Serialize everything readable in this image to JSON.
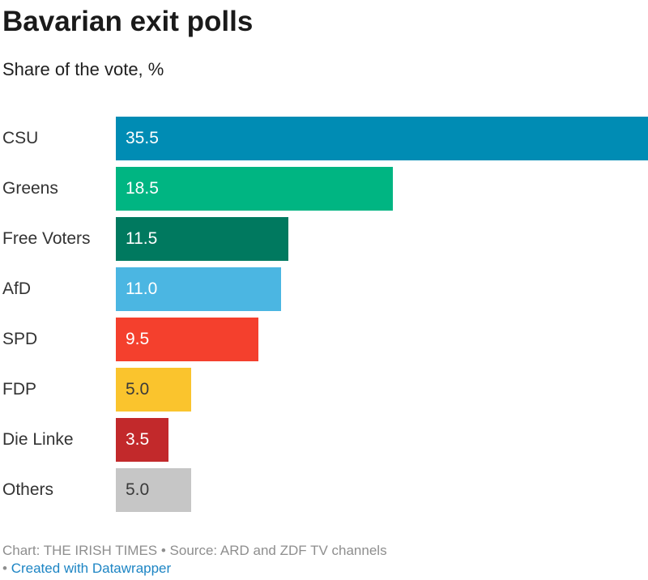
{
  "header": {
    "title": "Bavarian exit polls",
    "subtitle": "Share of the vote, %"
  },
  "chart_data": {
    "type": "bar",
    "orientation": "horizontal",
    "title": "Bavarian exit polls",
    "subtitle": "Share of the vote, %",
    "categories": [
      "CSU",
      "Greens",
      "Free Voters",
      "AfD",
      "SPD",
      "FDP",
      "Die Linke",
      "Others"
    ],
    "values": [
      35.5,
      18.5,
      11.5,
      11.0,
      9.5,
      5.0,
      3.5,
      5.0
    ],
    "value_labels": [
      "35.5",
      "18.5",
      "11.5",
      "11.0",
      "9.5",
      "5.0",
      "3.5",
      "5.0"
    ],
    "bar_colors": [
      "#008CB4",
      "#00B582",
      "#00795F",
      "#4BB6E2",
      "#F4402D",
      "#FAC42D",
      "#C2292B",
      "#C6C6C6"
    ],
    "value_label_colors": [
      "#ffffff",
      "#ffffff",
      "#ffffff",
      "#ffffff",
      "#ffffff",
      "#3a3a3a",
      "#ffffff",
      "#3a3a3a"
    ],
    "xmax": 35.5,
    "grid": false,
    "legend": "none"
  },
  "footer": {
    "line1": "Chart: THE IRISH TIMES • Source: ARD and ZDF TV channels",
    "line2_bullet": "•",
    "link_label": "Created with Datawrapper",
    "link_color": "#1D85C4",
    "text_color": "#8e8e8e"
  }
}
